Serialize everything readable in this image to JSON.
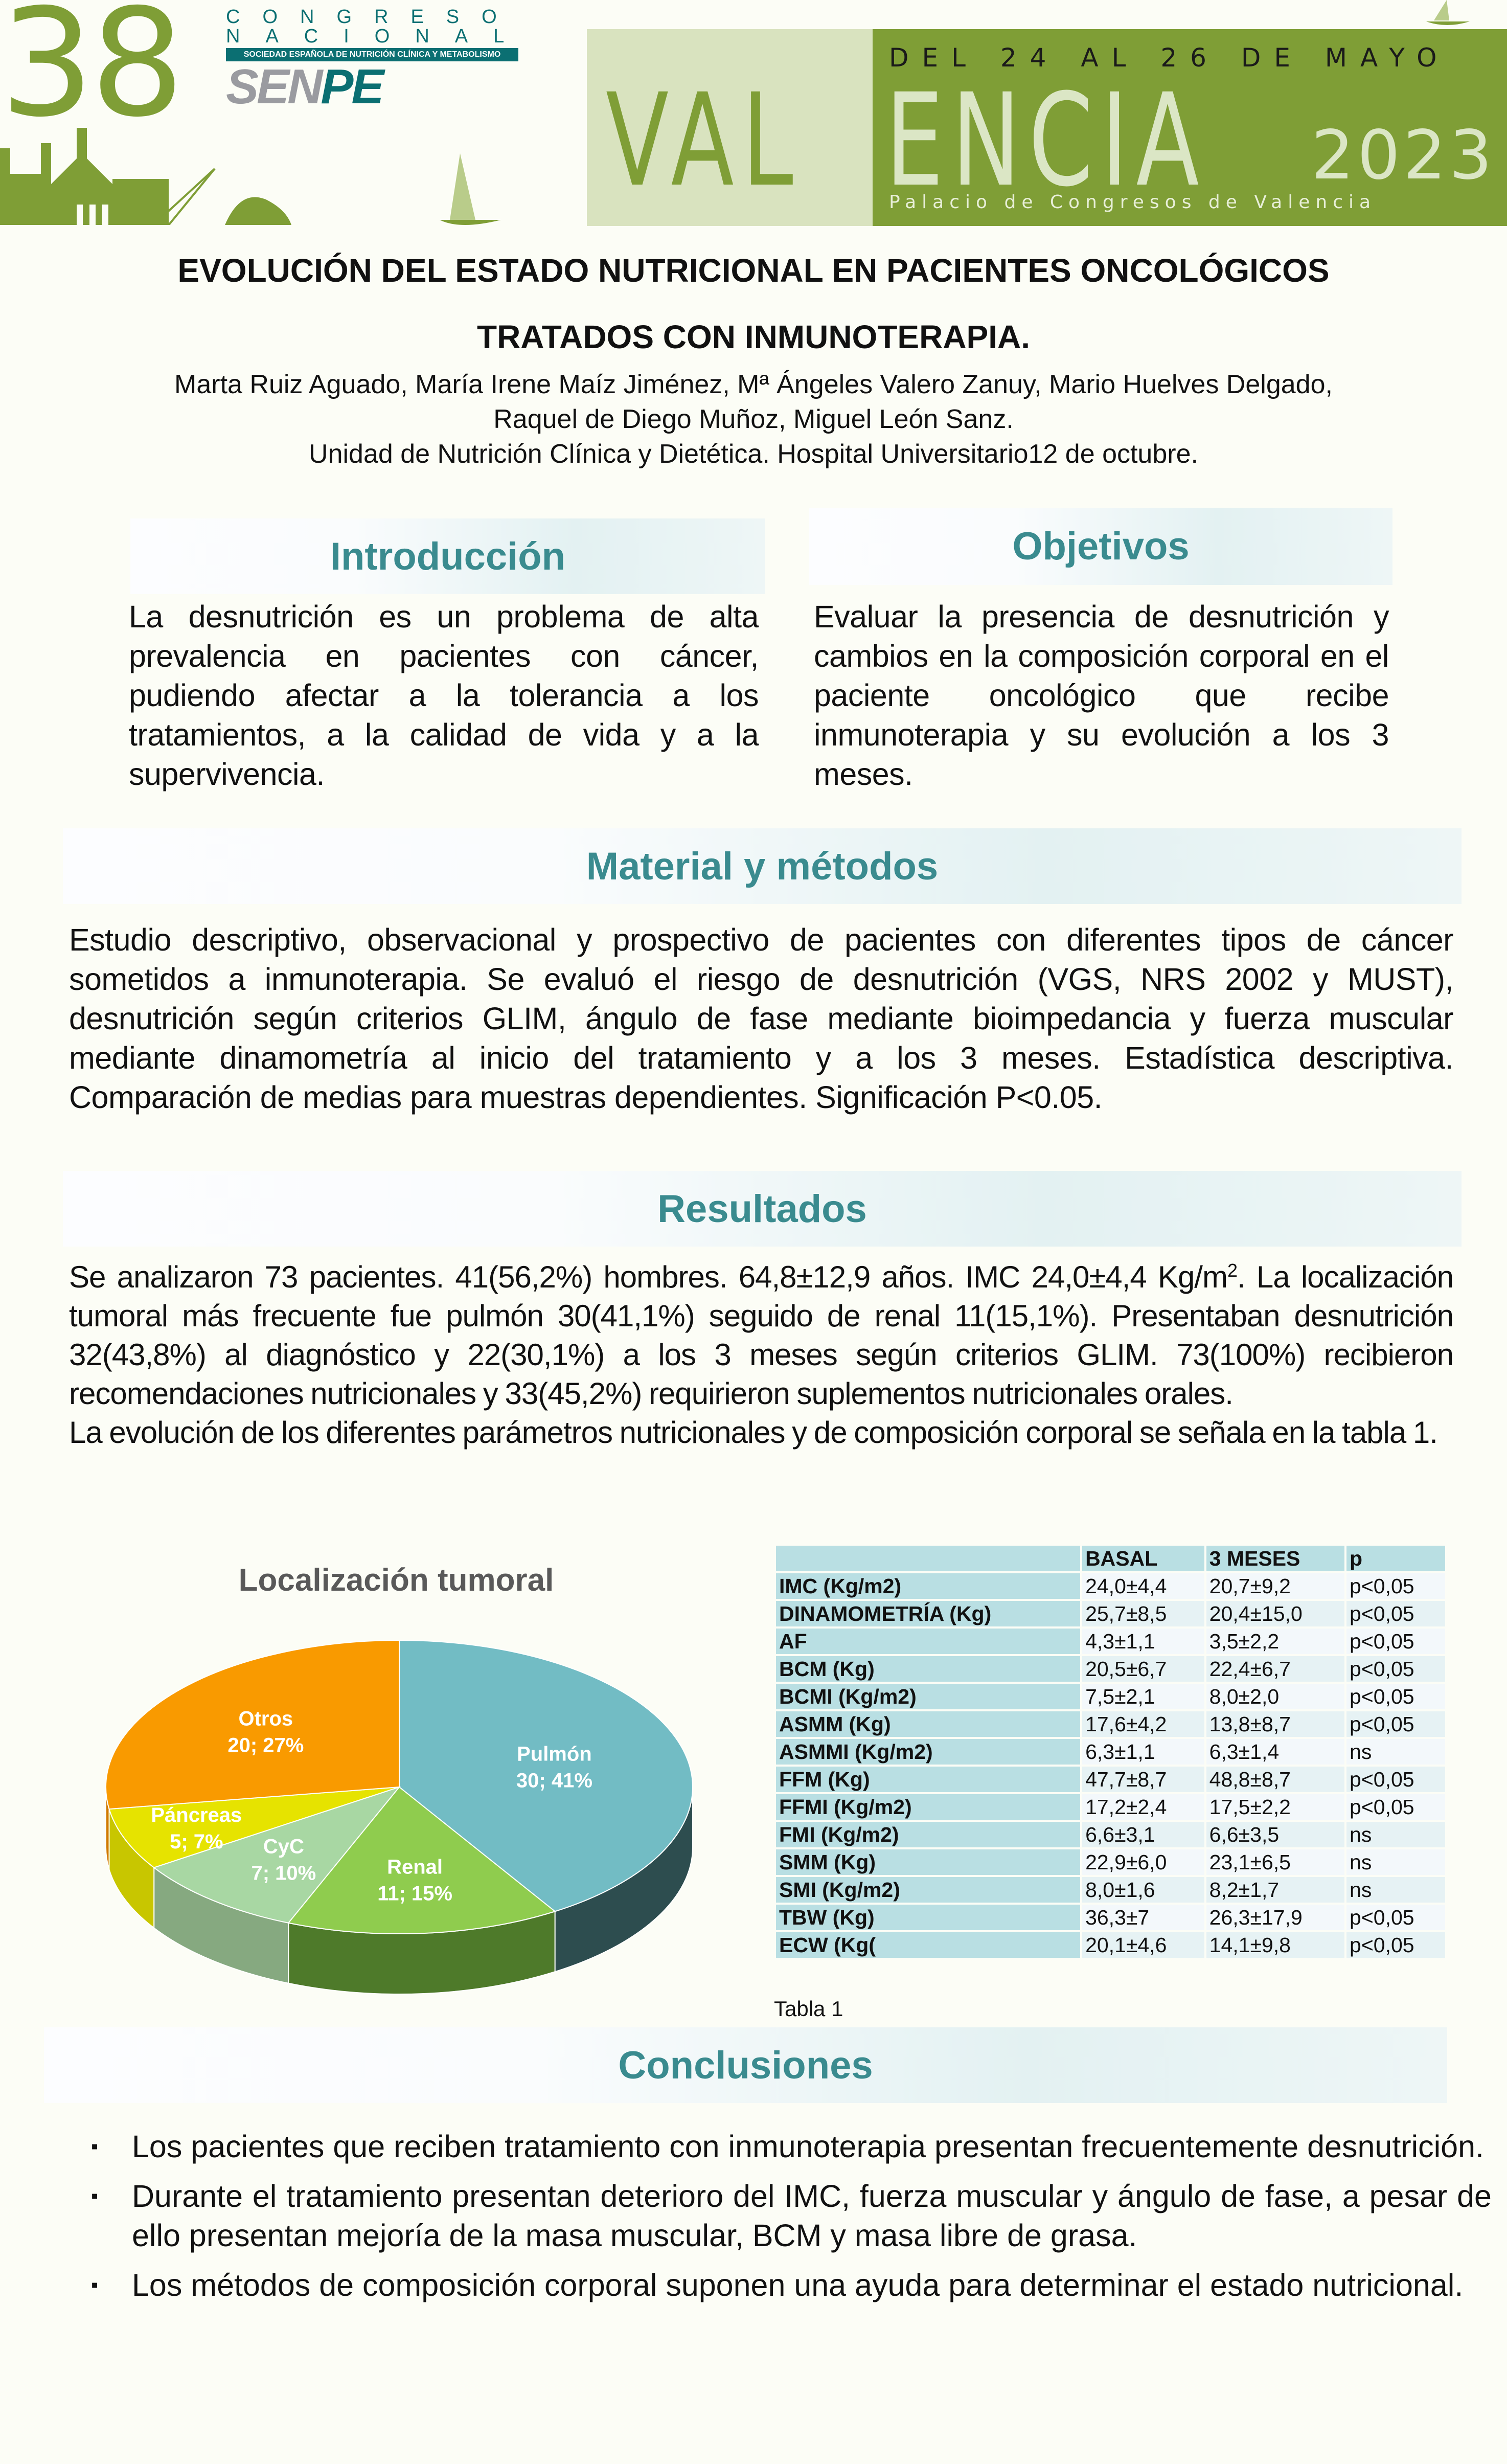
{
  "header": {
    "number": "38",
    "congreso": "CONGRESO",
    "nacional": "NACIONAL",
    "society": "SOCIEDAD ESPAÑOLA DE NUTRICIÓN CLÍNICA Y METABOLISMO",
    "logo_sen": "SEN",
    "logo_pe": "PE",
    "dates": "DEL 24 AL 26 DE MAYO",
    "city_part1": "VAL",
    "city_part2": "ENCIA",
    "year": "2023",
    "venue": "Palacio de Congresos de Valencia",
    "colors": {
      "green": "#7f9e36",
      "light_green": "#d9e3bf",
      "teal": "#0b6f72"
    }
  },
  "title": {
    "line1": "EVOLUCIÓN DEL ESTADO NUTRICIONAL EN PACIENTES ONCOLÓGICOS",
    "line2": "TRATADOS CON INMUNOTERAPIA.",
    "authors_line1": "Marta Ruiz Aguado, María Irene Maíz Jiménez, Mª Ángeles Valero Zanuy, Mario Huelves Delgado,",
    "authors_line2": "Raquel de Diego Muñoz, Miguel León Sanz.",
    "affiliation": "Unidad de Nutrición Clínica y Dietética. Hospital Universitario12 de octubre."
  },
  "intro": {
    "heading": "Introducción",
    "text": "La desnutrición es un problema de alta prevalencia en pacientes con cáncer, pudiendo afectar a la tolerancia a los tratamientos, a la calidad de vida y a la supervivencia."
  },
  "objetivos": {
    "heading": "Objetivos",
    "text": "Evaluar la presencia de desnutrición y cambios en la composición corporal en el paciente oncológico que recibe inmunoterapia y su evolución a los 3 meses."
  },
  "metodos": {
    "heading": "Material y métodos",
    "text": "Estudio descriptivo, observacional y prospectivo de pacientes con diferentes tipos de cáncer sometidos a inmunoterapia. Se evaluó el riesgo de desnutrición (VGS, NRS 2002 y MUST), desnutrición según criterios GLIM, ángulo de fase mediante bioimpedancia y fuerza muscular mediante dinamometría al inicio del tratamiento y a los 3 meses. Estadística descriptiva. Comparación de medias para muestras dependientes. Significación P<0.05."
  },
  "resultados": {
    "heading": "Resultados",
    "text1_a": "Se analizaron 73 pacientes. 41(56,2%) hombres. 64,8±12,9 años. IMC 24,0±4,4 Kg/m",
    "text1_sup": "2",
    "text1_b": ". La localización tumoral más frecuente fue pulmón 30(41,1%) seguido de renal 11(15,1%). Presentaban desnutrición 32(43,8%) al diagnóstico y 22(30,1%) a los 3 meses según criterios GLIM. 73(100%) recibieron recomendaciones nutricionales y 33(45,2%) requirieron suplementos nutricionales orales.",
    "text2": "La evolución de los diferentes parámetros nutricionales y de composición corporal se señala en la tabla 1."
  },
  "chart_data": {
    "type": "pie",
    "title": "Localización tumoral",
    "style": "3d",
    "categories": [
      "Pulmón",
      "Renal",
      "CyC",
      "Páncreas",
      "Otros"
    ],
    "values": [
      30,
      11,
      7,
      5,
      20
    ],
    "labels": [
      "30; 41%",
      "11; 15%",
      "7; 10%",
      "5; 7%",
      "20; 27%"
    ],
    "colors": [
      "#72bcc4",
      "#8fcc4e",
      "#a8d7a3",
      "#e6e300",
      "#f99a00"
    ],
    "side_colors": [
      "#2d4d4f",
      "#4e7a2a",
      "#86a980",
      "#c8c600",
      "#d07a00"
    ]
  },
  "table": {
    "headers": [
      "",
      "BASAL",
      "3 MESES",
      "p"
    ],
    "rows": [
      [
        "IMC (Kg/m2)",
        "24,0±4,4",
        "20,7±9,2",
        "p<0,05"
      ],
      [
        "DINAMOMETRÍA (Kg)",
        "25,7±8,5",
        "20,4±15,0",
        "p<0,05"
      ],
      [
        "AF",
        "4,3±1,1",
        "3,5±2,2",
        "p<0,05"
      ],
      [
        "BCM (Kg)",
        "20,5±6,7",
        "22,4±6,7",
        "p<0,05"
      ],
      [
        "BCMI (Kg/m2)",
        "7,5±2,1",
        "8,0±2,0",
        "p<0,05"
      ],
      [
        "ASMM (Kg)",
        "17,6±4,2",
        "13,8±8,7",
        "p<0,05"
      ],
      [
        "ASMMI (Kg/m2)",
        "6,3±1,1",
        "6,3±1,4",
        "ns"
      ],
      [
        "FFM (Kg)",
        "47,7±8,7",
        "48,8±8,7",
        "p<0,05"
      ],
      [
        "FFMI (Kg/m2)",
        "17,2±2,4",
        "17,5±2,2",
        "p<0,05"
      ],
      [
        "FMI (Kg/m2)",
        "6,6±3,1",
        "6,6±3,5",
        "ns"
      ],
      [
        "SMM (Kg)",
        "22,9±6,0",
        "23,1±6,5",
        "ns"
      ],
      [
        "SMI (Kg/m2)",
        "8,0±1,6",
        "8,2±1,7",
        "ns"
      ],
      [
        "TBW (Kg)",
        "36,3±7",
        "26,3±17,9",
        "p<0,05"
      ],
      [
        "ECW (Kg(",
        "20,1±4,6",
        "14,1±9,8",
        "p<0,05"
      ]
    ],
    "caption": "Tabla 1"
  },
  "conclusiones": {
    "heading": "Conclusiones",
    "bullet": "▪",
    "items": [
      "Los pacientes que reciben tratamiento con inmunoterapia presentan frecuentemente desnutrición.",
      "Durante el tratamiento presentan deterioro del IMC, fuerza muscular y ángulo de fase, a pesar de ello presentan mejoría de la masa muscular, BCM y masa libre de grasa.",
      "Los métodos de composición corporal suponen una ayuda para determinar el estado nutricional."
    ]
  }
}
